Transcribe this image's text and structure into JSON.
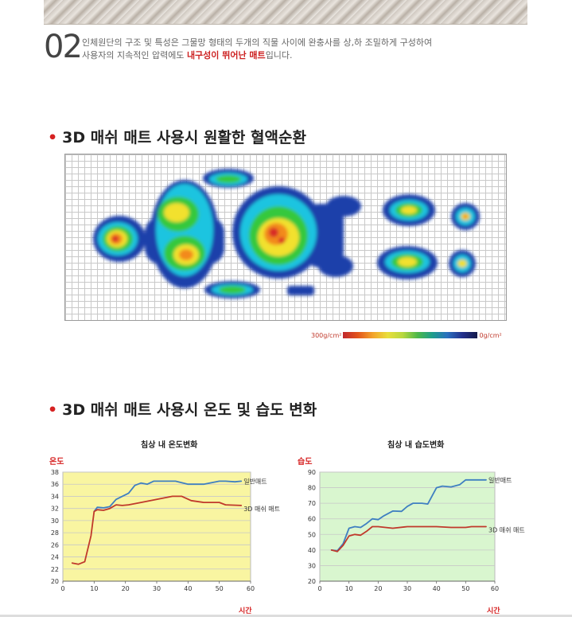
{
  "section": {
    "number": "02",
    "line1": "인체원단의 구조 및 특성은 그물망 형태의 두개의 직물 사이에 완충사를 상,하 조밀하게 구성하여",
    "line2_pre": "사용자의 지속적인 압력에도 ",
    "line2_highlight": "내구성이 뛰어난 매트",
    "line2_post": "입니다."
  },
  "heading1": "3D 매쉬 매트 사용시 원활한 혈액순환",
  "heading2": "3D 매쉬 매트 사용시 온도 및 습도 변화",
  "pressure_scale": {
    "max_label": "300g/cm²",
    "min_label": "0g/cm²"
  },
  "colors": {
    "accent": "#d62222",
    "normal": "#3f7fc1",
    "mesh": "#c0392b",
    "temp_bg": "#f9f5a1",
    "humid_bg": "#d9f6cf"
  },
  "chart_data": [
    {
      "type": "line",
      "title": "침상 내 온도변화",
      "ylabel": "온도",
      "xlabel": "시간",
      "xlim": [
        0,
        60
      ],
      "ylim": [
        20,
        38
      ],
      "xticks": [
        0,
        10,
        20,
        30,
        40,
        50,
        60
      ],
      "yticks": [
        20,
        22,
        24,
        26,
        28,
        30,
        32,
        34,
        36,
        38
      ],
      "series": [
        {
          "name": "일반매트",
          "x": [
            10,
            11,
            13,
            15,
            17,
            19,
            21,
            23,
            25,
            27,
            29,
            32,
            36,
            40,
            45,
            50,
            52,
            55,
            57
          ],
          "y": [
            31.5,
            32.2,
            32.1,
            32.3,
            33.5,
            34,
            34.5,
            35.8,
            36.2,
            36,
            36.5,
            36.5,
            36.5,
            36,
            36,
            36.5,
            36.5,
            36.4,
            36.5
          ]
        },
        {
          "name": "3D 매쉬 매트",
          "x": [
            3,
            5,
            7,
            9,
            10,
            11,
            13,
            15,
            17,
            19,
            21,
            25,
            30,
            35,
            38,
            41,
            45,
            50,
            52,
            57
          ],
          "y": [
            23,
            22.8,
            23.2,
            27.5,
            31.5,
            31.8,
            31.7,
            32,
            32.6,
            32.5,
            32.6,
            33,
            33.5,
            34,
            34,
            33.3,
            33,
            33,
            32.6,
            32.5
          ]
        }
      ]
    },
    {
      "type": "line",
      "title": "침상 내 습도변화",
      "ylabel": "습도",
      "xlabel": "시간",
      "xlim": [
        0,
        60
      ],
      "ylim": [
        20,
        90
      ],
      "xticks": [
        0,
        10,
        20,
        30,
        40,
        50,
        60
      ],
      "yticks": [
        20,
        30,
        40,
        50,
        60,
        70,
        80,
        90
      ],
      "series": [
        {
          "name": "일반매트",
          "x": [
            4,
            6,
            8,
            10,
            12,
            14,
            16,
            18,
            20,
            22,
            25,
            28,
            30,
            32,
            35,
            37,
            40,
            42,
            45,
            48,
            50,
            52,
            55,
            57
          ],
          "y": [
            40,
            39.5,
            44,
            54,
            55,
            54.5,
            57,
            60,
            59.5,
            62,
            65,
            64.8,
            68,
            70,
            70,
            69.5,
            80,
            81,
            80.5,
            82,
            85,
            85,
            85,
            85
          ]
        },
        {
          "name": "3D 매쉬 매트",
          "x": [
            4,
            6,
            8,
            10,
            12,
            14,
            16,
            18,
            20,
            25,
            30,
            35,
            40,
            45,
            50,
            52,
            57
          ],
          "y": [
            40,
            39,
            43,
            49,
            50,
            49.5,
            52,
            55,
            55,
            54,
            55,
            55,
            55,
            54.5,
            54.5,
            55,
            55
          ]
        }
      ]
    }
  ]
}
